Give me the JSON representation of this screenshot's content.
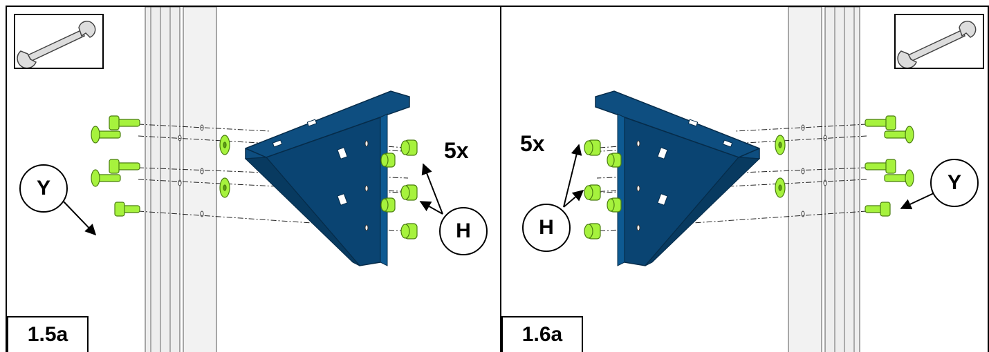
{
  "colors": {
    "bracket": "#0e4e80",
    "bracket_dark": "#083a60",
    "fastener": "#a6f23d",
    "fastener_dark": "#5e9e14",
    "upright": "#e8e8e8"
  },
  "icons": {
    "tool": "wrench-icon"
  },
  "left": {
    "step": "1.5a",
    "quantity": "5x",
    "callout_nut": "H",
    "callout_bolt": "Y"
  },
  "right": {
    "step": "1.6a",
    "quantity": "5x",
    "callout_nut": "H",
    "callout_bolt": "Y"
  }
}
